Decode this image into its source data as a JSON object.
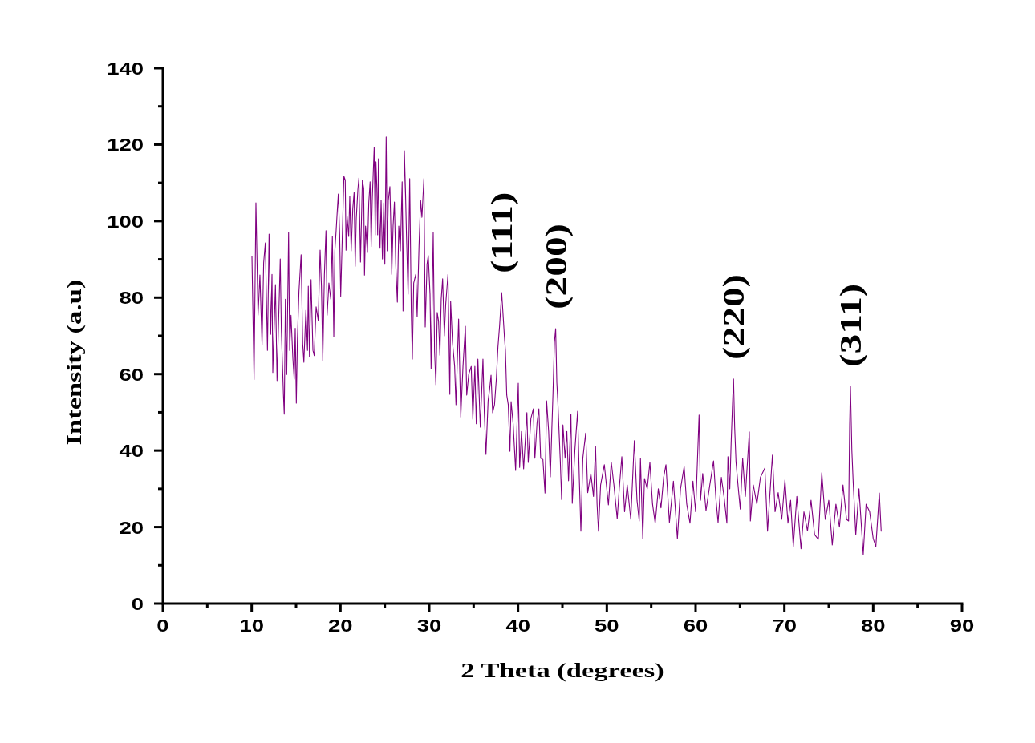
{
  "chart_data": {
    "type": "line",
    "xlabel": "2 Theta (degrees)",
    "ylabel": "Intensity (a.u)",
    "color": "#800080",
    "xlim": [
      0,
      90
    ],
    "ylim": [
      0,
      140
    ],
    "xticks": [
      0,
      {
        "value": 5,
        "label": null
      },
      10,
      {
        "value": 15,
        "label": null
      },
      20,
      {
        "value": 25,
        "label": null
      },
      30,
      {
        "value": 35,
        "label": null
      },
      40,
      {
        "value": 45,
        "label": null
      },
      50,
      {
        "value": 55,
        "label": null
      },
      60,
      {
        "value": 65,
        "label": null
      },
      70,
      {
        "value": 75,
        "label": null
      },
      80,
      {
        "value": 85,
        "label": null
      },
      90
    ],
    "yticks": [
      0,
      {
        "value": 10,
        "label": null
      },
      20,
      {
        "value": 30,
        "label": null
      },
      40,
      {
        "value": 50,
        "label": null
      },
      60,
      {
        "value": 70,
        "label": null
      },
      80,
      {
        "value": 90,
        "label": null
      },
      100,
      {
        "value": 110,
        "label": null
      },
      120,
      {
        "value": 130,
        "label": null
      },
      140
    ],
    "annotations": [
      {
        "text": "(111)",
        "x": 38.16,
        "y": 81.3
      },
      {
        "text": "(200)",
        "x": 44.24,
        "y": 71.9
      },
      {
        "text": "(220)",
        "x": 64.27,
        "y": 58.7
      },
      {
        "text": "(311)",
        "x": 77.44,
        "y": 56.8
      }
    ],
    "x": [
      10.03,
      10.27,
      10.48,
      10.72,
      10.93,
      11.17,
      11.35,
      11.54,
      11.78,
      11.96,
      12.14,
      12.29,
      12.38,
      12.68,
      12.86,
      13.13,
      13.22,
      13.34,
      13.58,
      13.67,
      13.8,
      13.95,
      14.1,
      14.16,
      14.28,
      14.43,
      14.64,
      14.79,
      14.91,
      15.03,
      15.15,
      15.33,
      15.57,
      15.75,
      15.88,
      16.11,
      16.29,
      16.38,
      16.51,
      16.69,
      16.9,
      17.05,
      17.26,
      17.5,
      17.71,
      17.86,
      18.01,
      18.19,
      18.37,
      18.5,
      18.7,
      18.91,
      19.09,
      19.25,
      19.37,
      19.52,
      19.67,
      19.76,
      19.91,
      20.03,
      20.18,
      20.39,
      20.54,
      20.63,
      20.75,
      20.93,
      21.05,
      21.21,
      21.39,
      21.54,
      21.66,
      21.78,
      21.96,
      22.08,
      22.26,
      22.47,
      22.62,
      22.71,
      22.83,
      23.04,
      23.19,
      23.34,
      23.46,
      23.58,
      23.8,
      23.92,
      24.0,
      24.1,
      24.19,
      24.28,
      24.37,
      24.46,
      24.58,
      24.73,
      24.88,
      25.0,
      25.15,
      25.27,
      25.39,
      25.57,
      25.69,
      25.78,
      25.93,
      26.08,
      26.23,
      26.41,
      26.57,
      26.75,
      26.95,
      27.05,
      27.2,
      27.33,
      27.44,
      27.62,
      27.8,
      27.98,
      28.1,
      28.25,
      28.49,
      28.64,
      28.85,
      29.03,
      29.18,
      29.4,
      29.55,
      29.75,
      29.89,
      30.09,
      30.21,
      30.45,
      30.6,
      30.75,
      30.9,
      31.05,
      31.2,
      31.35,
      31.51,
      31.7,
      31.85,
      32.11,
      32.32,
      32.41,
      32.62,
      32.86,
      33.01,
      33.31,
      33.55,
      33.8,
      34.07,
      34.22,
      34.45,
      34.73,
      34.91,
      35.14,
      35.3,
      35.48,
      35.75,
      36.05,
      36.2,
      36.39,
      36.63,
      36.8,
      36.96,
      37.14,
      37.35,
      37.56,
      37.74,
      37.92,
      38.16,
      38.34,
      38.46,
      38.58,
      38.73,
      38.9,
      39.09,
      39.22,
      39.45,
      39.73,
      40.03,
      40.18,
      40.39,
      40.63,
      41.0,
      41.15,
      41.45,
      41.72,
      41.9,
      42.14,
      42.35,
      42.55,
      42.8,
      43.04,
      43.22,
      43.45,
      43.64,
      43.8,
      43.94,
      44.1,
      44.24,
      44.37,
      44.49,
      44.62,
      44.76,
      44.91,
      45.06,
      45.3,
      45.5,
      45.69,
      45.96,
      46.11,
      46.4,
      46.71,
      46.9,
      47.08,
      47.3,
      47.62,
      47.85,
      48.2,
      48.5,
      48.73,
      48.9,
      49.06,
      49.3,
      49.72,
      50.18,
      50.5,
      50.8,
      51.17,
      51.4,
      51.69,
      52.0,
      52.3,
      52.7,
      53.1,
      53.4,
      53.65,
      53.79,
      54.05,
      54.24,
      54.55,
      54.85,
      55.15,
      55.45,
      55.8,
      56.1,
      56.4,
      56.66,
      57.05,
      57.5,
      57.95,
      58.3,
      58.71,
      59.0,
      59.37,
      59.7,
      60.0,
      60.39,
      60.55,
      60.8,
      61.17,
      61.6,
      62.02,
      62.3,
      62.53,
      62.9,
      63.2,
      63.52,
      63.64,
      63.85,
      64.0,
      64.18,
      64.27,
      64.4,
      64.55,
      64.79,
      65.03,
      65.3,
      65.6,
      66.05,
      66.17,
      66.5,
      66.9,
      67.3,
      67.8,
      68.1,
      68.65,
      68.95,
      69.3,
      69.7,
      70.06,
      70.4,
      70.7,
      71.0,
      71.4,
      71.87,
      72.2,
      72.6,
      73.0,
      73.4,
      73.82,
      74.21,
      74.6,
      75.0,
      75.39,
      75.8,
      76.2,
      76.6,
      77.0,
      77.23,
      77.35,
      77.44,
      77.6,
      77.74,
      78.04,
      78.4,
      78.88,
      79.2,
      79.6,
      80.0,
      80.3,
      80.69,
      80.9
    ],
    "values": [
      90.8,
      58.6,
      104.8,
      75.4,
      85.9,
      67.7,
      89.1,
      94.3,
      66.2,
      96.6,
      70.4,
      86.1,
      60.4,
      83.4,
      58.3,
      82.0,
      90.1,
      71.7,
      54.5,
      49.5,
      79.6,
      59.9,
      85.9,
      97.0,
      66.2,
      75.4,
      64.1,
      58.7,
      72.0,
      52.4,
      68.7,
      81.7,
      91.2,
      67.9,
      63.1,
      76.7,
      66.2,
      83.0,
      64.6,
      84.7,
      66.2,
      64.8,
      77.6,
      74.0,
      92.4,
      83.0,
      63.5,
      85.9,
      97.5,
      75.4,
      83.8,
      79.6,
      96.0,
      69.8,
      92.2,
      97.7,
      103.8,
      107.1,
      96.6,
      80.3,
      93.5,
      111.7,
      110.7,
      92.4,
      101.2,
      96.0,
      106.5,
      92.2,
      103.3,
      107.5,
      88.2,
      100.6,
      108.2,
      111.3,
      89.3,
      110.7,
      108.6,
      85.9,
      98.7,
      91.8,
      104.8,
      110.3,
      93.3,
      105.4,
      119.3,
      96.4,
      115.5,
      108.8,
      96.4,
      116.3,
      99.8,
      92.9,
      105.4,
      90.1,
      104.8,
      88.7,
      122.0,
      92.2,
      105.4,
      109.0,
      97.0,
      86.1,
      98.7,
      105.0,
      88.7,
      78.8,
      98.7,
      92.2,
      110.3,
      76.5,
      118.4,
      107.5,
      96.0,
      80.9,
      111.1,
      76.1,
      63.9,
      83.8,
      86.1,
      75.0,
      93.5,
      105.4,
      101.0,
      111.1,
      72.3,
      88.7,
      91.0,
      80.9,
      61.4,
      97.0,
      66.0,
      57.2,
      76.1,
      73.8,
      64.9,
      79.6,
      84.9,
      70.0,
      78.0,
      86.1,
      54.7,
      79.0,
      68.3,
      62.0,
      52.0,
      74.4,
      48.8,
      62.0,
      72.5,
      54.5,
      60.0,
      62.0,
      48.2,
      62.0,
      47.0,
      63.9,
      46.1,
      63.9,
      50.0,
      39.0,
      53.0,
      56.0,
      59.7,
      49.9,
      52.0,
      58.9,
      67.1,
      72.5,
      81.3,
      74.6,
      70.0,
      66.2,
      54.5,
      52.0,
      39.8,
      52.8,
      47.0,
      34.8,
      57.6,
      35.6,
      45.0,
      35.2,
      49.9,
      36.9,
      48.4,
      50.9,
      38.0,
      47.2,
      50.9,
      38.0,
      37.7,
      28.9,
      53.0,
      45.0,
      33.1,
      45.0,
      55.1,
      68.3,
      71.9,
      57.8,
      52.6,
      45.0,
      37.3,
      27.2,
      46.7,
      38.0,
      45.0,
      32.1,
      49.5,
      26.2,
      40.0,
      50.3,
      33.0,
      18.9,
      38.0,
      44.6,
      29.0,
      34.0,
      28.0,
      41.1,
      26.0,
      18.9,
      31.0,
      36.3,
      25.8,
      37.0,
      31.0,
      22.2,
      30.0,
      38.4,
      24.0,
      31.0,
      22.0,
      42.6,
      27.0,
      21.6,
      37.9,
      17.0,
      32.7,
      30.0,
      36.9,
      26.0,
      21.0,
      30.0,
      25.0,
      33.0,
      36.3,
      21.2,
      32.0,
      17.0,
      30.0,
      35.8,
      26.0,
      21.0,
      32.0,
      24.0,
      49.3,
      27.0,
      34.0,
      24.3,
      31.0,
      37.3,
      27.0,
      21.2,
      33.0,
      28.0,
      21.0,
      38.4,
      30.0,
      42.0,
      53.7,
      58.7,
      46.0,
      37.0,
      30.6,
      24.7,
      38.0,
      28.0,
      44.9,
      21.6,
      31.0,
      26.0,
      33.0,
      35.4,
      18.9,
      38.8,
      24.0,
      29.0,
      22.0,
      32.3,
      21.0,
      27.0,
      14.9,
      28.0,
      14.3,
      24.0,
      19.0,
      27.0,
      18.0,
      16.8,
      34.2,
      22.0,
      27.0,
      15.3,
      26.0,
      20.0,
      31.0,
      22.0,
      21.6,
      46.7,
      56.8,
      40.0,
      32.1,
      18.0,
      30.0,
      12.8,
      26.0,
      24.0,
      17.0,
      14.9,
      28.9,
      18.9
    ]
  }
}
